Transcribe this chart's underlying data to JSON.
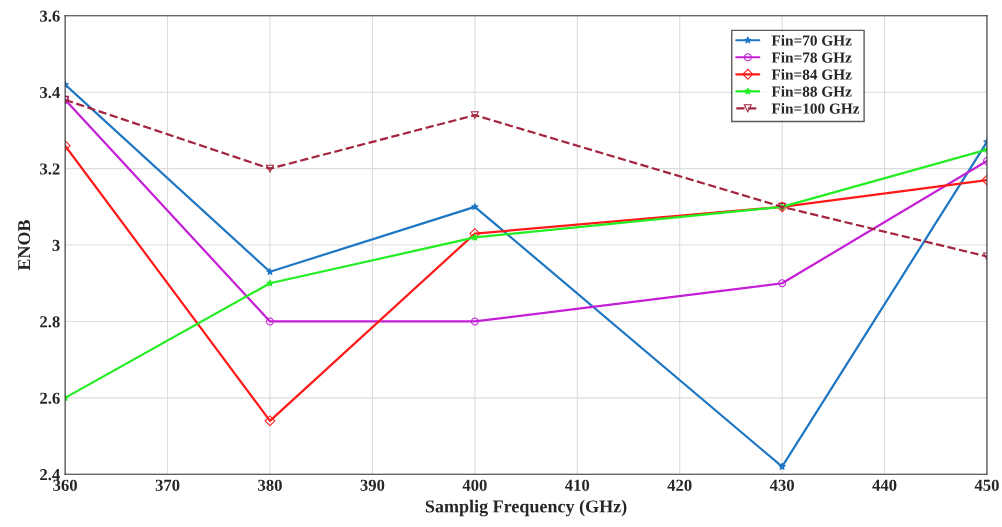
{
  "chart_data": {
    "type": "line",
    "xlabel": "Samplig Frequency (GHz)",
    "ylabel": "ENOB",
    "x": [
      360,
      380,
      400,
      430,
      450
    ],
    "series": [
      {
        "name": "Fin=70 GHz",
        "color": "#1f77c4",
        "marker": "star",
        "line_style": "solid",
        "values": [
          3.42,
          2.93,
          3.1,
          2.42,
          3.27
        ]
      },
      {
        "name": "Fin=78 GHz",
        "color": "#c41fd6",
        "marker": "circle",
        "line_style": "solid",
        "values": [
          3.38,
          2.8,
          2.8,
          2.9,
          3.22
        ]
      },
      {
        "name": "Fin=84 GHz",
        "color": "#ff1a1a",
        "marker": "diamond",
        "line_style": "solid",
        "values": [
          3.26,
          2.54,
          3.03,
          3.1,
          3.17
        ]
      },
      {
        "name": "Fin=88 GHz",
        "color": "#22ee22",
        "marker": "star",
        "line_style": "solid",
        "values": [
          2.6,
          2.9,
          3.02,
          3.1,
          3.25
        ]
      },
      {
        "name": "Fin=100 GHz",
        "color": "#a3253f",
        "marker": "triangle",
        "line_style": "dashed",
        "values": [
          3.38,
          3.2,
          3.34,
          3.1,
          2.97
        ]
      }
    ],
    "xlim": [
      360,
      450
    ],
    "xticks": [
      360,
      370,
      380,
      390,
      400,
      410,
      420,
      430,
      440,
      450
    ],
    "ylim": [
      2.4,
      3.6
    ],
    "yticks": [
      2.4,
      2.6,
      2.8,
      {
        "value": 3.0,
        "label": "3"
      },
      3.2,
      3.4,
      3.6
    ],
    "grid": true,
    "legend": "top right"
  }
}
